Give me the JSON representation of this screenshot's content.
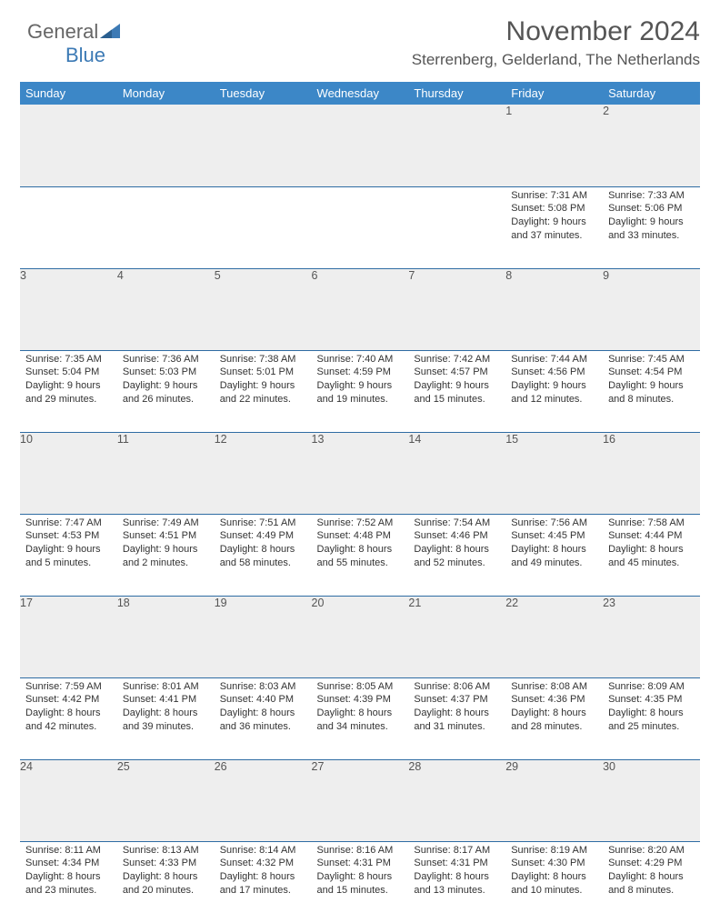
{
  "brand": {
    "part1": "General",
    "part2": "Blue"
  },
  "header": {
    "title": "November 2024",
    "location": "Sterrenberg, Gelderland, The Netherlands"
  },
  "calendar": {
    "header_bg": "#3c87c7",
    "header_fg": "#ffffff",
    "daynum_bg": "#eeeeee",
    "rule_color": "#2f6ca3",
    "text_color": "#333333",
    "font_size_body": 11,
    "font_size_header": 13,
    "day_names": [
      "Sunday",
      "Monday",
      "Tuesday",
      "Wednesday",
      "Thursday",
      "Friday",
      "Saturday"
    ],
    "weeks": [
      [
        null,
        null,
        null,
        null,
        null,
        {
          "n": "1",
          "sr": "7:31 AM",
          "ss": "5:08 PM",
          "dl": "9 hours and 37 minutes."
        },
        {
          "n": "2",
          "sr": "7:33 AM",
          "ss": "5:06 PM",
          "dl": "9 hours and 33 minutes."
        }
      ],
      [
        {
          "n": "3",
          "sr": "7:35 AM",
          "ss": "5:04 PM",
          "dl": "9 hours and 29 minutes."
        },
        {
          "n": "4",
          "sr": "7:36 AM",
          "ss": "5:03 PM",
          "dl": "9 hours and 26 minutes."
        },
        {
          "n": "5",
          "sr": "7:38 AM",
          "ss": "5:01 PM",
          "dl": "9 hours and 22 minutes."
        },
        {
          "n": "6",
          "sr": "7:40 AM",
          "ss": "4:59 PM",
          "dl": "9 hours and 19 minutes."
        },
        {
          "n": "7",
          "sr": "7:42 AM",
          "ss": "4:57 PM",
          "dl": "9 hours and 15 minutes."
        },
        {
          "n": "8",
          "sr": "7:44 AM",
          "ss": "4:56 PM",
          "dl": "9 hours and 12 minutes."
        },
        {
          "n": "9",
          "sr": "7:45 AM",
          "ss": "4:54 PM",
          "dl": "9 hours and 8 minutes."
        }
      ],
      [
        {
          "n": "10",
          "sr": "7:47 AM",
          "ss": "4:53 PM",
          "dl": "9 hours and 5 minutes."
        },
        {
          "n": "11",
          "sr": "7:49 AM",
          "ss": "4:51 PM",
          "dl": "9 hours and 2 minutes."
        },
        {
          "n": "12",
          "sr": "7:51 AM",
          "ss": "4:49 PM",
          "dl": "8 hours and 58 minutes."
        },
        {
          "n": "13",
          "sr": "7:52 AM",
          "ss": "4:48 PM",
          "dl": "8 hours and 55 minutes."
        },
        {
          "n": "14",
          "sr": "7:54 AM",
          "ss": "4:46 PM",
          "dl": "8 hours and 52 minutes."
        },
        {
          "n": "15",
          "sr": "7:56 AM",
          "ss": "4:45 PM",
          "dl": "8 hours and 49 minutes."
        },
        {
          "n": "16",
          "sr": "7:58 AM",
          "ss": "4:44 PM",
          "dl": "8 hours and 45 minutes."
        }
      ],
      [
        {
          "n": "17",
          "sr": "7:59 AM",
          "ss": "4:42 PM",
          "dl": "8 hours and 42 minutes."
        },
        {
          "n": "18",
          "sr": "8:01 AM",
          "ss": "4:41 PM",
          "dl": "8 hours and 39 minutes."
        },
        {
          "n": "19",
          "sr": "8:03 AM",
          "ss": "4:40 PM",
          "dl": "8 hours and 36 minutes."
        },
        {
          "n": "20",
          "sr": "8:05 AM",
          "ss": "4:39 PM",
          "dl": "8 hours and 34 minutes."
        },
        {
          "n": "21",
          "sr": "8:06 AM",
          "ss": "4:37 PM",
          "dl": "8 hours and 31 minutes."
        },
        {
          "n": "22",
          "sr": "8:08 AM",
          "ss": "4:36 PM",
          "dl": "8 hours and 28 minutes."
        },
        {
          "n": "23",
          "sr": "8:09 AM",
          "ss": "4:35 PM",
          "dl": "8 hours and 25 minutes."
        }
      ],
      [
        {
          "n": "24",
          "sr": "8:11 AM",
          "ss": "4:34 PM",
          "dl": "8 hours and 23 minutes."
        },
        {
          "n": "25",
          "sr": "8:13 AM",
          "ss": "4:33 PM",
          "dl": "8 hours and 20 minutes."
        },
        {
          "n": "26",
          "sr": "8:14 AM",
          "ss": "4:32 PM",
          "dl": "8 hours and 17 minutes."
        },
        {
          "n": "27",
          "sr": "8:16 AM",
          "ss": "4:31 PM",
          "dl": "8 hours and 15 minutes."
        },
        {
          "n": "28",
          "sr": "8:17 AM",
          "ss": "4:31 PM",
          "dl": "8 hours and 13 minutes."
        },
        {
          "n": "29",
          "sr": "8:19 AM",
          "ss": "4:30 PM",
          "dl": "8 hours and 10 minutes."
        },
        {
          "n": "30",
          "sr": "8:20 AM",
          "ss": "4:29 PM",
          "dl": "8 hours and 8 minutes."
        }
      ]
    ],
    "labels": {
      "sunrise": "Sunrise:",
      "sunset": "Sunset:",
      "daylight": "Daylight:"
    }
  }
}
